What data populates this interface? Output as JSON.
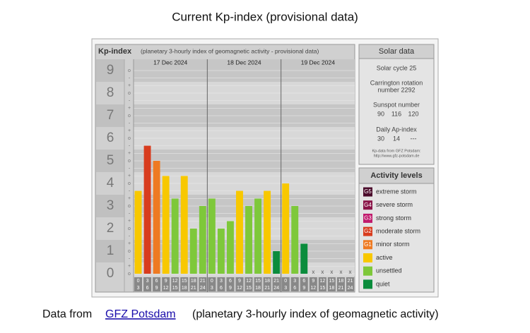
{
  "page_title": "Current Kp-index (provisional data)",
  "chart_data": {
    "type": "bar",
    "header_title": "Kp-index",
    "header_subtitle": "(planetary 3-hourly index of geomagnetic activity - provisional data)",
    "days": [
      "17 Dec 2024",
      "18 Dec 2024",
      "19 Dec 2024"
    ],
    "hour_start": [
      0,
      3,
      6,
      9,
      12,
      15,
      18,
      21
    ],
    "hour_end": [
      3,
      6,
      9,
      12,
      15,
      18,
      21,
      24
    ],
    "series": [
      {
        "name": "Kp",
        "values": [
          3.67,
          5.67,
          5,
          4.33,
          3.33,
          4.33,
          2,
          3,
          3.33,
          2,
          2.33,
          3.67,
          3,
          3.33,
          3.67,
          1,
          4,
          3,
          1.33,
          null,
          null,
          null,
          null,
          null
        ],
        "colors": [
          "#f8c800",
          "#d83c1e",
          "#ee7a22",
          "#f8c800",
          "#7ec83a",
          "#f8c800",
          "#7ec83a",
          "#7ec83a",
          "#7ec83a",
          "#7ec83a",
          "#7ec83a",
          "#f8c800",
          "#7ec83a",
          "#7ec83a",
          "#f8c800",
          "#0a8c3c",
          "#f8c800",
          "#7ec83a",
          "#0a8c3c",
          null,
          null,
          null,
          null,
          null
        ]
      }
    ],
    "null_marker": "x",
    "ylim": [
      0,
      9
    ],
    "yticks": [
      0,
      1,
      2,
      3,
      4,
      5,
      6,
      7,
      8,
      9
    ],
    "thirds": [
      "-",
      "o",
      "+"
    ]
  },
  "solar_data": {
    "title": "Solar data",
    "cycle": "Solar cycle 25",
    "carrington": [
      "Carrington rotation",
      "number 2292"
    ],
    "sunspot_label": "Sunspot number",
    "sunspot": [
      90,
      116,
      120
    ],
    "ap_label": "Daily Ap-index",
    "ap": [
      30,
      14,
      "---"
    ],
    "source": [
      "Kp-data from GFZ Potsdam:",
      "http://www.gfz-potsdam.de"
    ]
  },
  "activity_levels": {
    "title": "Activity levels",
    "items": [
      {
        "code": "G5",
        "label": "extreme storm",
        "color": "#4a0a2a"
      },
      {
        "code": "G4",
        "label": "severe storm",
        "color": "#8a1448"
      },
      {
        "code": "G3",
        "label": "strong storm",
        "color": "#c01a6c"
      },
      {
        "code": "G2",
        "label": "moderate storm",
        "color": "#d83c1e"
      },
      {
        "code": "G1",
        "label": "minor storm",
        "color": "#ee7a22"
      },
      {
        "code": null,
        "label": "active",
        "color": "#f8c800"
      },
      {
        "code": null,
        "label": "unsettled",
        "color": "#7ec83a"
      },
      {
        "code": null,
        "label": "quiet",
        "color": "#0a8c3c"
      }
    ]
  },
  "footer": {
    "prefix": "Data from",
    "link": "GFZ Potsdam",
    "suffix": "(planetary 3-hourly index of geomagnetic activity)"
  }
}
